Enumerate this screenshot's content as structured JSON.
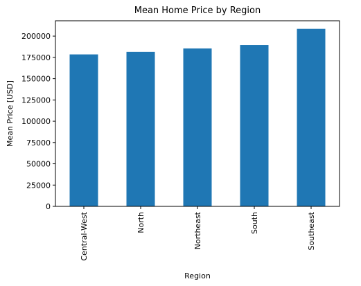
{
  "chart_data": {
    "type": "bar",
    "title": "Mean Home Price by Region",
    "xlabel": "Region",
    "ylabel": "Mean Price [USD]",
    "categories": [
      "Central-West",
      "North",
      "Northeast",
      "South",
      "Southeast"
    ],
    "values": [
      178500,
      181500,
      185500,
      189500,
      208500
    ],
    "ylim": [
      0,
      218000
    ],
    "yticks": [
      0,
      25000,
      50000,
      75000,
      100000,
      125000,
      150000,
      175000,
      200000
    ],
    "ytick_labels": [
      "0",
      "25000",
      "50000",
      "75000",
      "100000",
      "125000",
      "150000",
      "175000",
      "200000"
    ],
    "bar_color": "#1f77b4",
    "grid": false,
    "legend": "none"
  }
}
